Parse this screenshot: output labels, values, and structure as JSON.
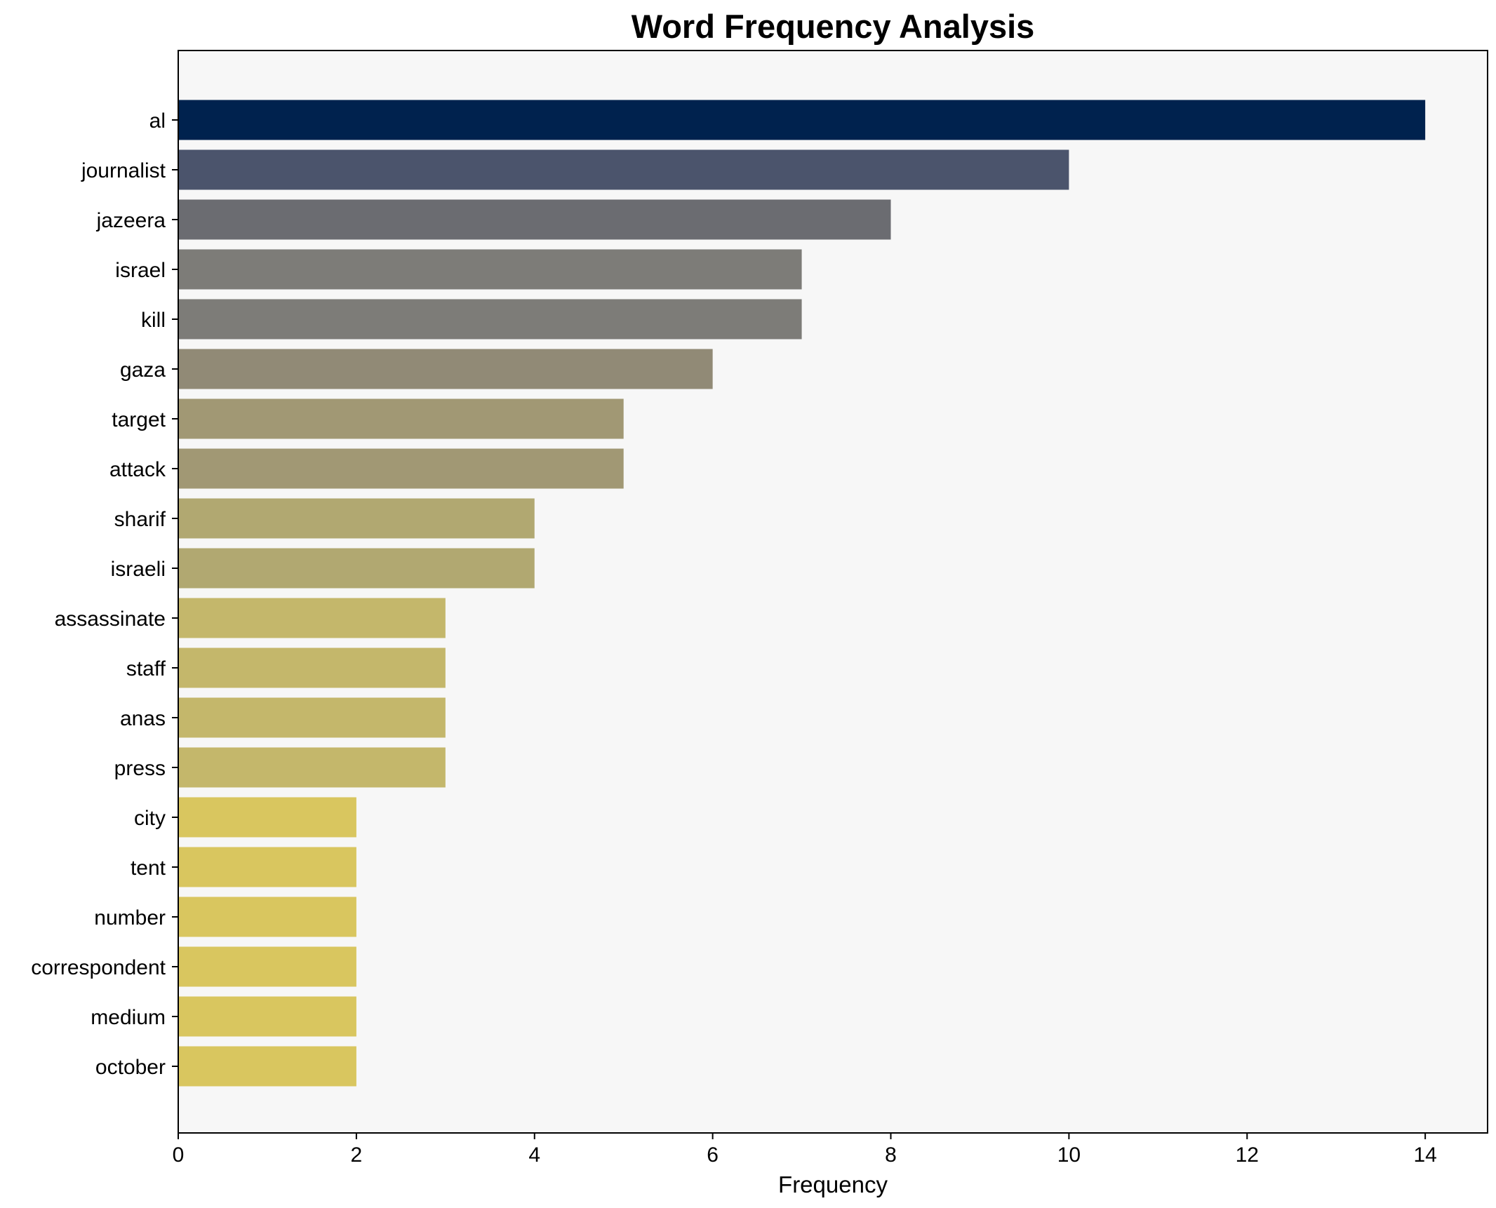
{
  "chart_data": {
    "type": "bar",
    "orientation": "horizontal",
    "title": "Word Frequency Analysis",
    "xlabel": "Frequency",
    "ylabel": "",
    "xlim": [
      0,
      14.7
    ],
    "xticks": [
      0,
      2,
      4,
      6,
      8,
      10,
      12,
      14
    ],
    "grid": false,
    "legend": "none",
    "plot_background": "#f7f7f7",
    "categories": [
      "al",
      "journalist",
      "jazeera",
      "israel",
      "kill",
      "gaza",
      "target",
      "attack",
      "sharif",
      "israeli",
      "assassinate",
      "staff",
      "anas",
      "press",
      "city",
      "tent",
      "number",
      "correspondent",
      "medium",
      "october"
    ],
    "values": [
      14,
      10,
      8,
      7,
      7,
      6,
      5,
      5,
      4,
      4,
      3,
      3,
      3,
      3,
      2,
      2,
      2,
      2,
      2,
      2
    ],
    "colors": [
      "#00224e",
      "#4b546c",
      "#6b6c71",
      "#7d7c78",
      "#7d7c78",
      "#918a76",
      "#a19874",
      "#a19874",
      "#b1a871",
      "#b1a871",
      "#c4b76b",
      "#c4b76b",
      "#c4b76b",
      "#c4b76b",
      "#d9c65f",
      "#d9c65f",
      "#d9c65f",
      "#d9c65f",
      "#d9c65f",
      "#d9c65f"
    ]
  }
}
